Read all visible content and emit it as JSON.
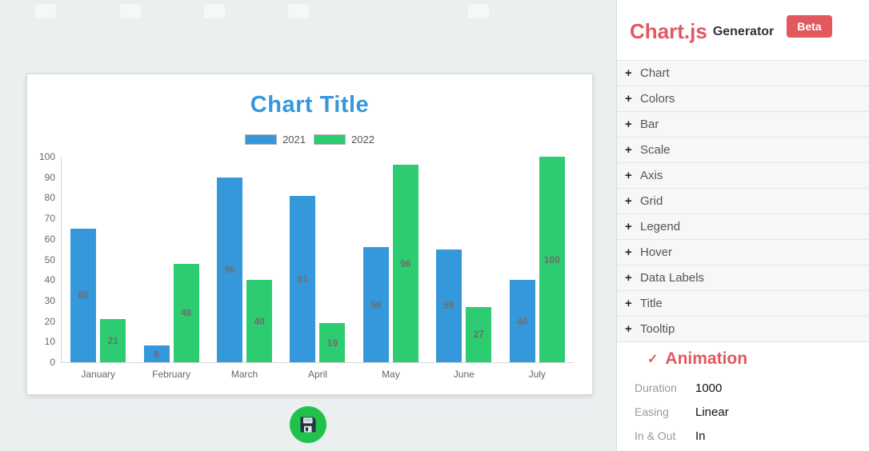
{
  "app": {
    "brand": "Chart.js",
    "brand_suffix": "Generator",
    "badge": "Beta"
  },
  "colors": {
    "accent": "#e2585f",
    "background": "#ebeff0",
    "panel": "#ffffff",
    "title": "#3598db",
    "save_button": "#21c24c",
    "bar_2021": "#3598db",
    "bar_2022": "#2ecc71",
    "data_label": "#6d6d6d"
  },
  "sidebar": {
    "expand_icon": "+",
    "sections": [
      {
        "label": "Chart"
      },
      {
        "label": "Colors"
      },
      {
        "label": "Bar"
      },
      {
        "label": "Scale"
      },
      {
        "label": "Axis"
      },
      {
        "label": "Grid"
      },
      {
        "label": "Legend"
      },
      {
        "label": "Hover"
      },
      {
        "label": "Data Labels"
      },
      {
        "label": "Title"
      },
      {
        "label": "Tooltip"
      }
    ],
    "animation": {
      "collapse_icon": "✓",
      "label": "Animation",
      "fields": [
        {
          "label": "Duration",
          "value": "1000"
        },
        {
          "label": "Easing",
          "value": "Linear"
        },
        {
          "label": "In & Out",
          "value": "In"
        }
      ]
    }
  },
  "chart_data": {
    "type": "bar",
    "title": "Chart Title",
    "categories": [
      "January",
      "February",
      "March",
      "April",
      "May",
      "June",
      "July"
    ],
    "series": [
      {
        "name": "2021",
        "color": "#3598db",
        "values": [
          65,
          8,
          90,
          81,
          56,
          55,
          40
        ]
      },
      {
        "name": "2022",
        "color": "#2ecc71",
        "values": [
          21,
          48,
          40,
          19,
          96,
          27,
          100
        ]
      }
    ],
    "xlabel": "",
    "ylabel": "",
    "ylim": [
      0,
      100
    ],
    "yticks": [
      0,
      10,
      20,
      30,
      40,
      50,
      60,
      70,
      80,
      90,
      100
    ],
    "grid": false,
    "legend_position": "top",
    "data_labels": true
  }
}
